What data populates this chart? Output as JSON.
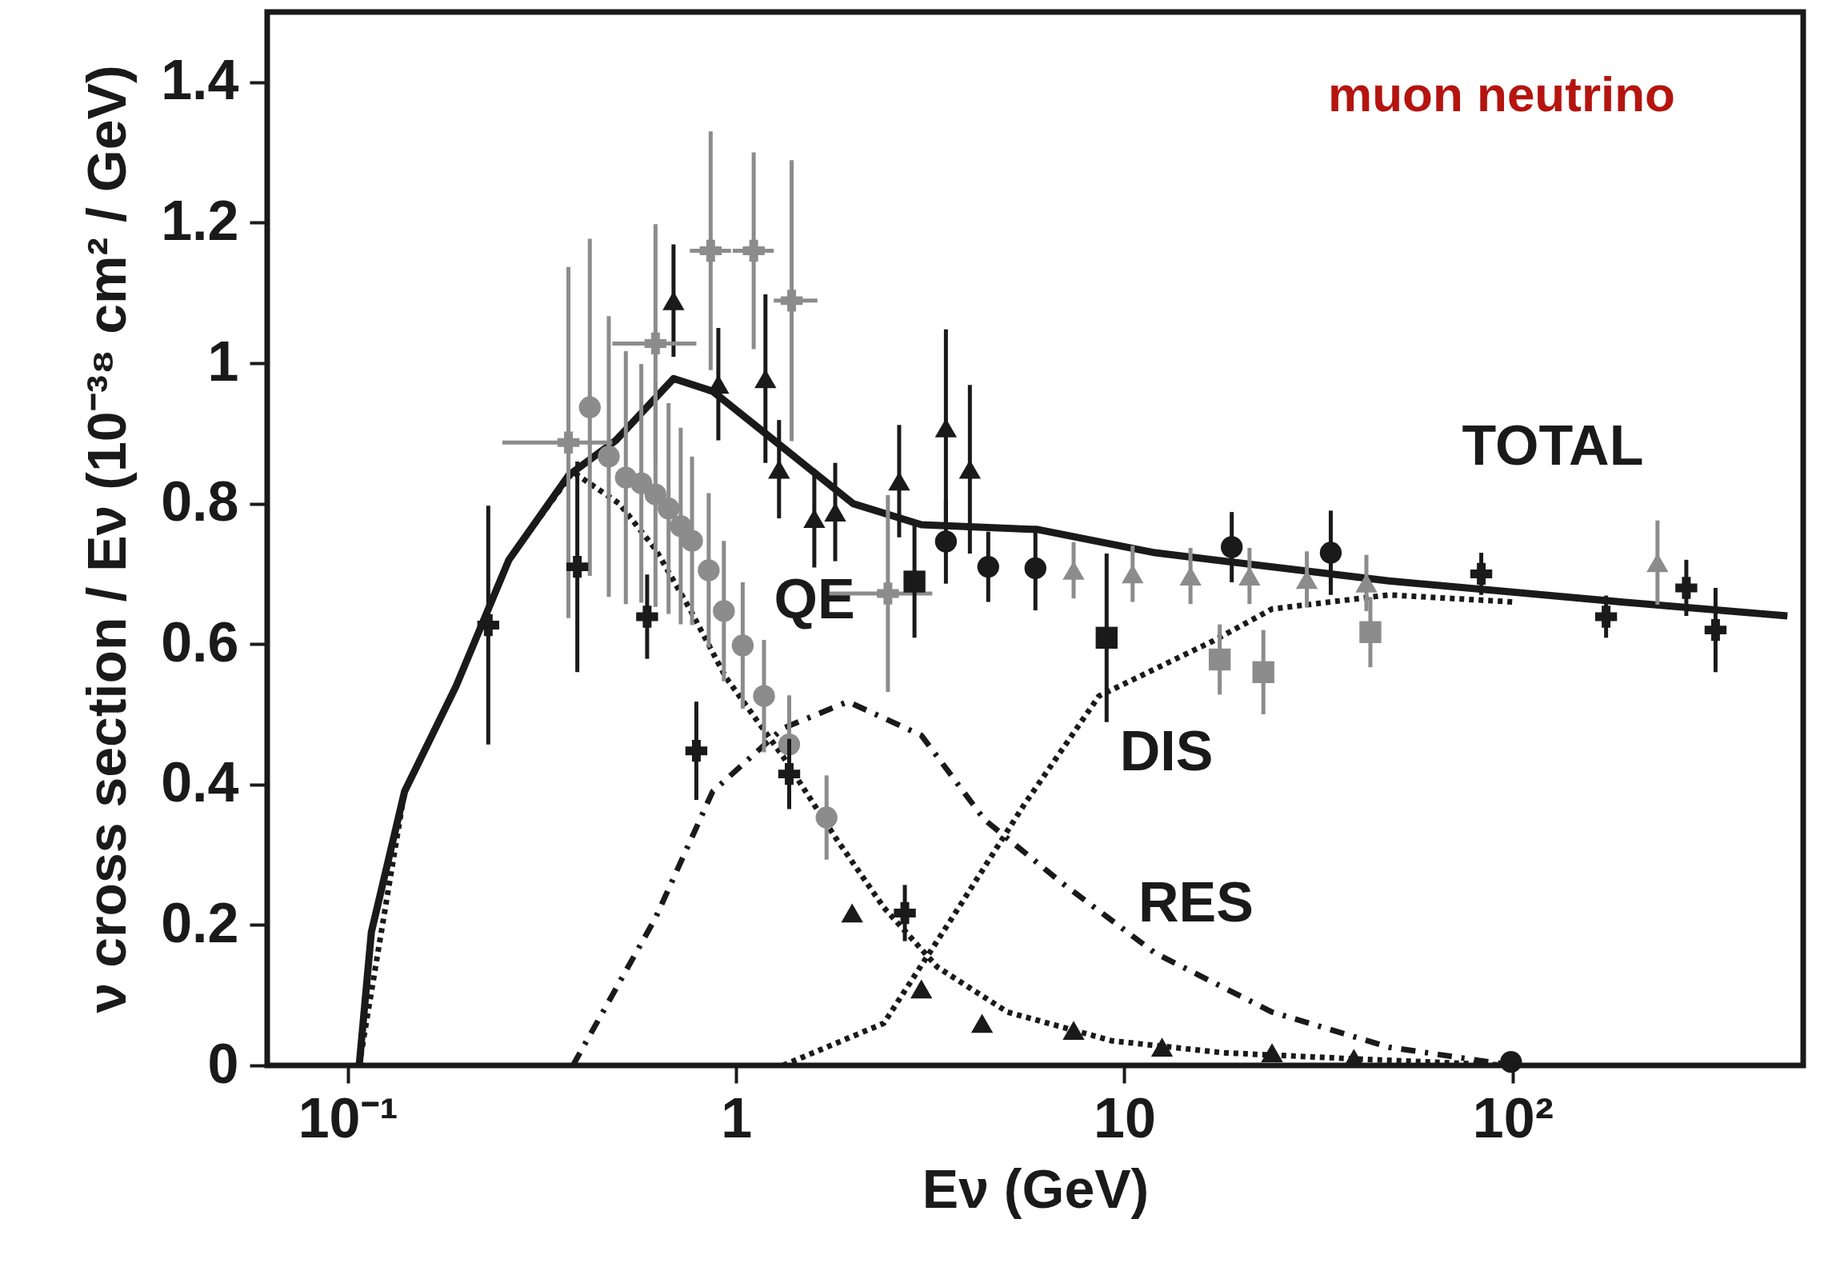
{
  "chart_data": {
    "type": "line",
    "title": "muon neutrino",
    "xlabel": "Eν (GeV)",
    "ylabel": "ν cross section / Eν (10⁻³⁸ cm² / GeV)",
    "log": "x",
    "grid": false,
    "xlim": [
      0.062,
      560
    ],
    "ylim": [
      0,
      1.5
    ],
    "xticks": [
      {
        "value": 0.1,
        "label": "10⁻¹"
      },
      1,
      10,
      {
        "value": 100,
        "label": "10²"
      }
    ],
    "yticks": [
      0,
      0.2,
      0.4,
      0.6,
      0.8,
      1,
      1.2,
      1.4
    ],
    "series": [
      {
        "type": "line",
        "line_style": "solid",
        "color": "#1a1a1a",
        "x": [
          0.107,
          0.115,
          0.14,
          0.19,
          0.26,
          0.37,
          0.49,
          0.69,
          0.87,
          1.32,
          2.0,
          3.0,
          6.0,
          12,
          48,
          190,
          510
        ],
        "values": [
          0,
          0.19,
          0.39,
          0.54,
          0.72,
          0.84,
          0.89,
          0.978,
          0.96,
          0.88,
          0.8,
          0.77,
          0.763,
          0.73,
          0.69,
          0.66,
          0.64
        ]
      },
      {
        "type": "line",
        "line_style": "dotted",
        "color": "#1a1a1a",
        "x": [
          0.107,
          0.14,
          0.19,
          0.26,
          0.38,
          0.5,
          0.62,
          0.76,
          0.94,
          1.32,
          1.8,
          2.4,
          3.3,
          5.0,
          9.3,
          18,
          37,
          100
        ],
        "values": [
          0,
          0.39,
          0.54,
          0.72,
          0.845,
          0.8,
          0.735,
          0.65,
          0.553,
          0.44,
          0.325,
          0.225,
          0.14,
          0.076,
          0.035,
          0.018,
          0.01,
          0
        ]
      },
      {
        "type": "line",
        "line_style": "dashed",
        "color": "#1a1a1a",
        "x": [
          0.38,
          0.62,
          0.87,
          1.32,
          1.94,
          3.0,
          4.36,
          6.9,
          12,
          24,
          48,
          100
        ],
        "values": [
          0,
          0.21,
          0.39,
          0.48,
          0.518,
          0.47,
          0.35,
          0.26,
          0.16,
          0.076,
          0.026,
          0
        ]
      },
      {
        "type": "line",
        "line_style": "dotted",
        "color": "#1a1a1a",
        "x": [
          1.32,
          2.4,
          3.6,
          5.5,
          8.6,
          17,
          24,
          48,
          100
        ],
        "values": [
          0,
          0.06,
          0.21,
          0.37,
          0.526,
          0.605,
          0.65,
          0.67,
          0.66
        ]
      },
      {
        "type": "scatter",
        "marker": "circle",
        "color": "#8c8c8c",
        "x": [
          0.42,
          0.47,
          0.52,
          0.57,
          0.62,
          0.67,
          0.72,
          0.77,
          0.85,
          0.93,
          1.04,
          1.18,
          1.37,
          1.71
        ],
        "values": [
          0.937,
          0.867,
          0.837,
          0.829,
          0.813,
          0.793,
          0.768,
          0.747,
          0.705,
          0.647,
          0.598,
          0.526,
          0.457,
          0.353
        ],
        "errors": [
          0.24,
          0.2,
          0.18,
          0.17,
          0.16,
          0.15,
          0.14,
          0.12,
          0.11,
          0.1,
          0.09,
          0.08,
          0.07,
          0.06
        ]
      },
      {
        "type": "scatter",
        "marker": "triangle",
        "color": "#1a1a1a",
        "x": [
          0.69,
          0.9,
          1.19,
          1.29,
          1.59,
          1.8,
          2.63,
          3.47,
          4.0
        ],
        "values": [
          1.089,
          0.97,
          0.978,
          0.849,
          0.779,
          0.788,
          0.832,
          0.908,
          0.849
        ],
        "errors": [
          0.08,
          0.08,
          0.12,
          0.07,
          0.07,
          0.07,
          0.08,
          0.14,
          0.12
        ]
      },
      {
        "type": "scatter",
        "marker": "cross",
        "color": "#8c8c8c",
        "x": [
          0.37,
          0.62,
          0.86,
          1.11,
          1.39,
          2.46
        ],
        "values": [
          0.887,
          1.028,
          1.16,
          1.16,
          1.089,
          0.672
        ],
        "errors": [
          0.25,
          0.17,
          0.17,
          0.14,
          0.2,
          0.14
        ],
        "xerrors": [
          [
            0.25,
            0.48
          ],
          [
            0.48,
            0.79
          ],
          [
            0.76,
            0.97
          ],
          [
            0.98,
            1.25
          ],
          [
            1.25,
            1.62
          ],
          [
            1.74,
            3.2
          ]
        ]
      },
      {
        "type": "scatter",
        "marker": "circle",
        "color": "#1a1a1a",
        "x": [
          3.47,
          4.46,
          5.9
        ],
        "values": [
          0.746,
          0.71,
          0.708
        ],
        "errors": [
          0.06,
          0.05,
          0.06
        ]
      },
      {
        "type": "scatter",
        "marker": "cross",
        "color": "#1a1a1a",
        "x": [
          0.23,
          0.39,
          0.59,
          0.79,
          1.37,
          2.72,
          83,
          174,
          280,
          333
        ],
        "values": [
          0.627,
          0.71,
          0.639,
          0.448,
          0.415,
          0.217,
          0.7,
          0.639,
          0.68,
          0.62
        ],
        "errors": [
          0.17,
          0.15,
          0.06,
          0.07,
          0.05,
          0.04,
          0.03,
          0.03,
          0.04,
          0.06
        ]
      },
      {
        "type": "scatter",
        "marker": "triangle",
        "color": "#8c8c8c",
        "x": [
          7.4,
          10.5,
          14.8,
          21,
          29.5,
          42,
          236
        ],
        "values": [
          0.705,
          0.7,
          0.697,
          0.697,
          0.692,
          0.687,
          0.716
        ],
        "errors": [
          0.04,
          0.04,
          0.04,
          0.04,
          0.04,
          0.04,
          0.06
        ]
      },
      {
        "type": "scatter",
        "marker": "square",
        "color": "#8c8c8c",
        "x": [
          17.6,
          22.8,
          43
        ],
        "values": [
          0.578,
          0.56,
          0.617
        ],
        "errors": [
          0.05,
          0.06,
          0.05
        ]
      },
      {
        "type": "scatter",
        "marker": "square",
        "color": "#1a1a1a",
        "x": [
          2.88,
          9.0
        ],
        "values": [
          0.689,
          0.609
        ],
        "errors": [
          0.08,
          0.12
        ]
      },
      {
        "type": "scatter",
        "marker": "triangle",
        "color": "#1a1a1a",
        "x": [
          1.99,
          3.0,
          4.3,
          7.4,
          12.5,
          24,
          39
        ],
        "values": [
          0.217,
          0.109,
          0.06,
          0.05,
          0.026,
          0.018,
          0.01
        ]
      },
      {
        "type": "scatter",
        "marker": "circle",
        "color": "#1a1a1a",
        "x": [
          18.9,
          34,
          99
        ],
        "values": [
          0.738,
          0.73,
          0.005
        ],
        "errors": [
          0.05,
          0.06,
          null
        ]
      }
    ],
    "annotations": [
      "TOTAL",
      "QE",
      "DIS",
      "RES"
    ]
  }
}
